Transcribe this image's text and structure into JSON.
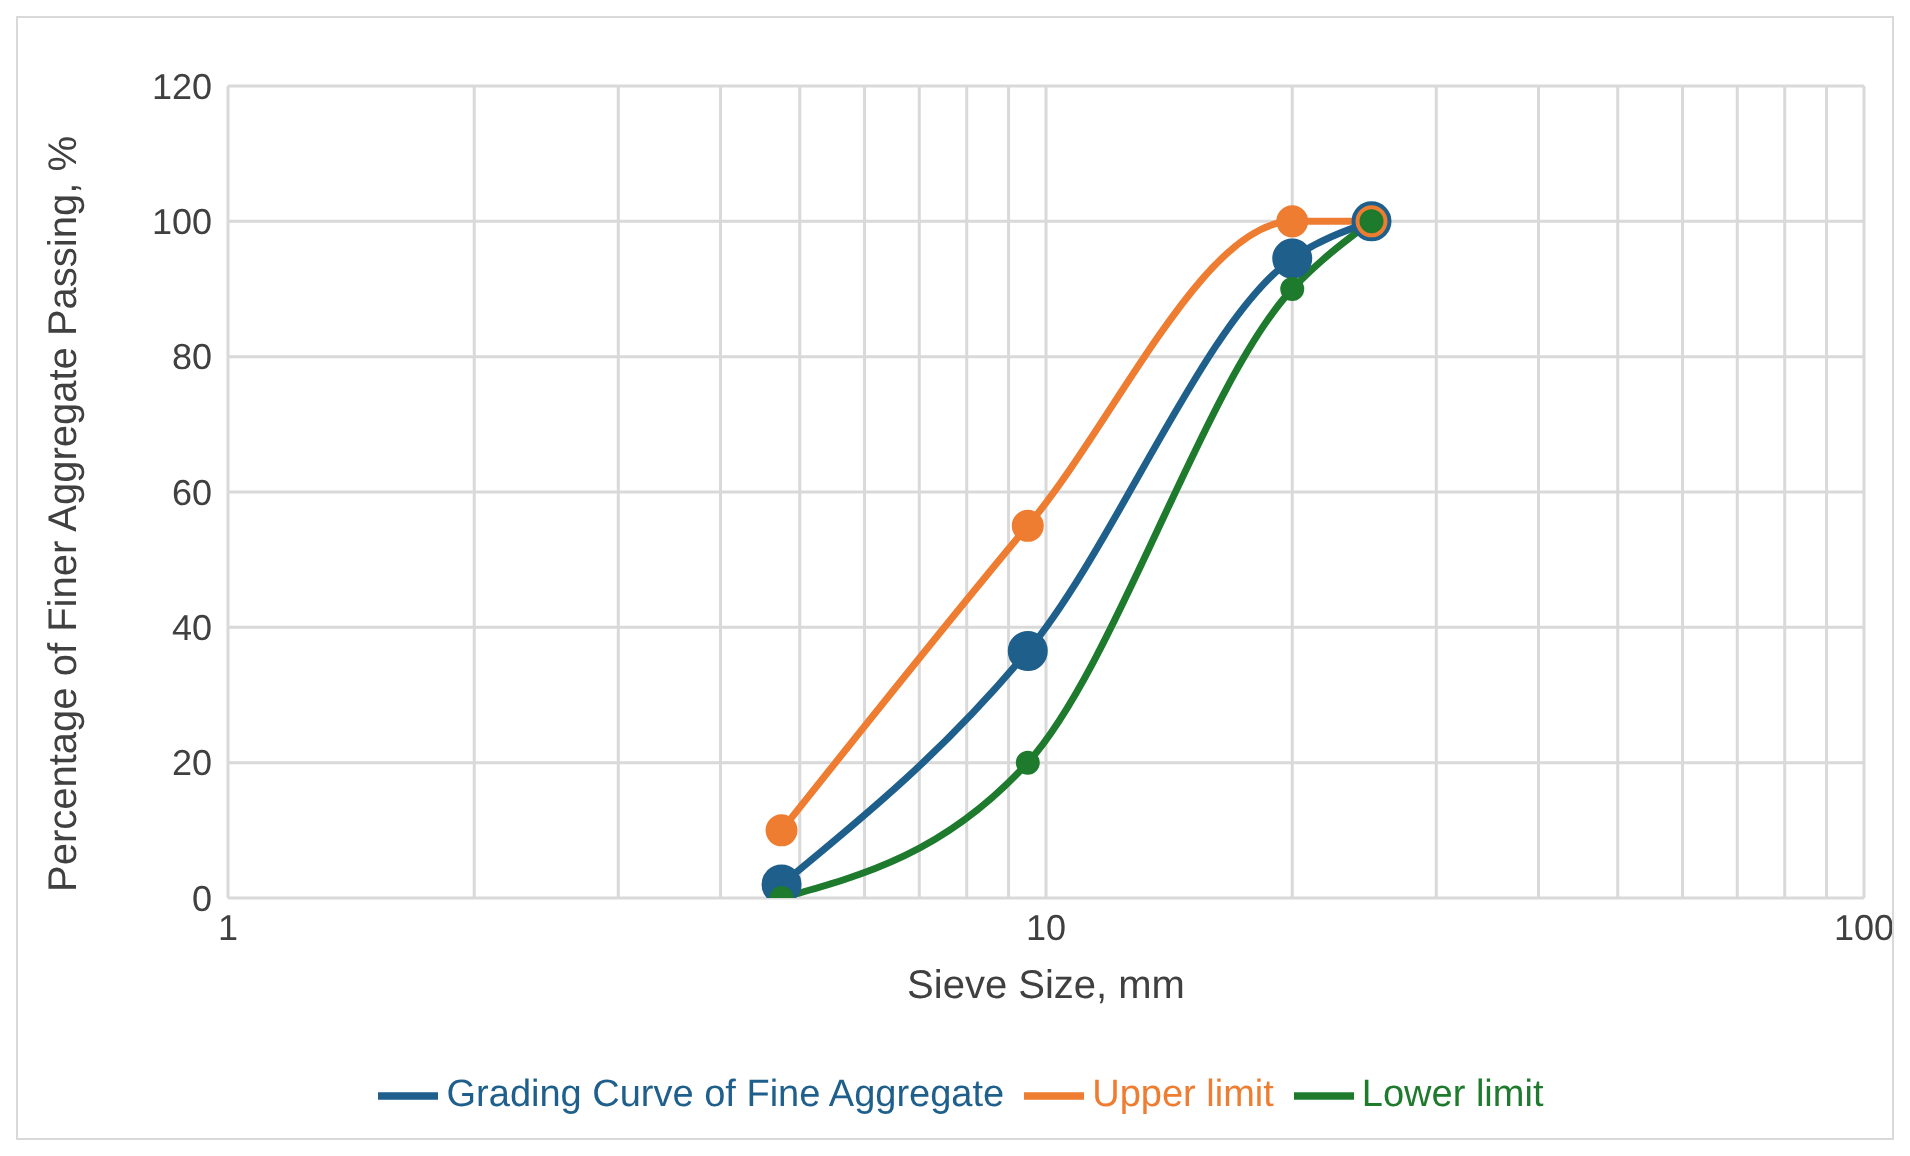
{
  "chart_data": {
    "type": "line",
    "xlabel": "Sieve Size, mm",
    "ylabel": "Percentage of Finer Aggregate Passing, %",
    "x": [
      4.75,
      9.5,
      20,
      25
    ],
    "series": [
      {
        "name": "Grading Curve of Fine Aggregate",
        "color": "#1f5f8b",
        "values": [
          2,
          36.5,
          94.5,
          100
        ]
      },
      {
        "name": "Upper limit",
        "color": "#ee7d31",
        "values": [
          10,
          55,
          100,
          100
        ]
      },
      {
        "name": "Lower limit",
        "color": "#1e7a2c",
        "values": [
          0,
          20,
          90,
          100
        ]
      }
    ],
    "log": "x",
    "xlim": [
      1,
      100
    ],
    "xticks": [
      1,
      {
        "value": 2,
        "label": null
      },
      {
        "value": 3,
        "label": null
      },
      {
        "value": 4,
        "label": null
      },
      {
        "value": 5,
        "label": null
      },
      {
        "value": 6,
        "label": null
      },
      {
        "value": 7,
        "label": null
      },
      {
        "value": 8,
        "label": null
      },
      {
        "value": 9,
        "label": null
      },
      10,
      {
        "value": 20,
        "label": null
      },
      {
        "value": 30,
        "label": null
      },
      {
        "value": 40,
        "label": null
      },
      {
        "value": 50,
        "label": null
      },
      {
        "value": 60,
        "label": null
      },
      {
        "value": 70,
        "label": null
      },
      {
        "value": 80,
        "label": null
      },
      {
        "value": 90,
        "label": null
      },
      100
    ],
    "ylim": [
      0,
      120
    ],
    "yticks": [
      0,
      20,
      40,
      60,
      80,
      100,
      120
    ],
    "grid": true,
    "legend": "bottom",
    "marker": "circle",
    "line_style": "solid"
  }
}
